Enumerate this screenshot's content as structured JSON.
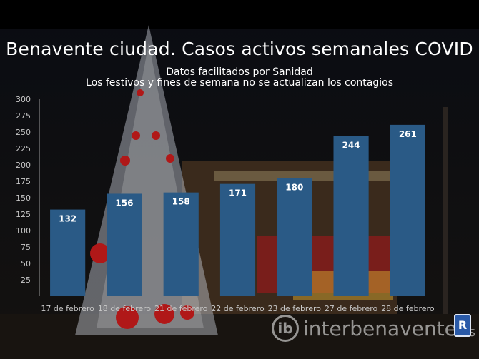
{
  "chart_data": {
    "type": "bar",
    "title": "Benavente ciudad. Casos activos semanales COVID",
    "subtitle": [
      "Datos facilitados por Sanidad",
      "Los festivos y fines de semana no se actualizan los contagios"
    ],
    "categories": [
      "17 de febrero",
      "18 de febrero",
      "21 de febrero",
      "22 de febrero",
      "23 de febrero",
      "27 de febrero",
      "28 de febrero"
    ],
    "values": [
      132,
      156,
      158,
      171,
      180,
      244,
      261
    ],
    "ylim": [
      0,
      300
    ],
    "yticks": [
      25,
      50,
      75,
      100,
      125,
      150,
      175,
      200,
      225,
      250,
      275,
      300
    ],
    "xlabel": "",
    "ylabel": "",
    "grid": false,
    "colors": {
      "bar": "#2a5a86",
      "label": "#ffffff",
      "tick": "#c8c8c8"
    }
  },
  "watermark": {
    "logo": "ib",
    "text": "interbenavente",
    "suffix": ".es",
    "badge": "R"
  }
}
